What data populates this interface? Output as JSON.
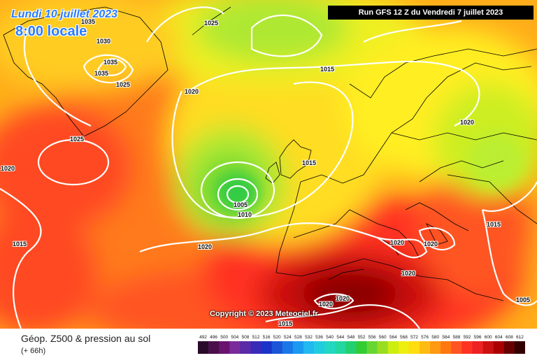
{
  "header": {
    "date": "Lundi 10 juillet 2023",
    "local_time": "8:00 locale",
    "run": "Run GFS 12 Z du Vendredi 7 juillet 2023"
  },
  "copyright": "Copyright © 2023 Meteociel.fr",
  "footer": {
    "field_title": "Géop. Z500 & pression au sol",
    "lead_time": "(+ 66h)"
  },
  "isobar_labels": [
    "1025",
    "1030",
    "1035",
    "1025",
    "1025",
    "1015",
    "1020",
    "1025",
    "1020",
    "1015",
    "1005",
    "1010",
    "1015",
    "1020",
    "1020",
    "1020",
    "1020",
    "1015",
    "1020",
    "1020",
    "1015",
    "1005",
    "1015",
    "1035"
  ],
  "colorscale": {
    "ticks": [
      "492",
      "496",
      "500",
      "504",
      "508",
      "512",
      "516",
      "520",
      "524",
      "528",
      "532",
      "536",
      "540",
      "544",
      "548",
      "552",
      "556",
      "560",
      "564",
      "568",
      "572",
      "576",
      "580",
      "584",
      "588",
      "592",
      "596",
      "600",
      "604",
      "608",
      "612"
    ],
    "colors": [
      "#2a0a2a",
      "#4b0f4b",
      "#6a1470",
      "#7a2a9a",
      "#5a2aa8",
      "#3a2ab8",
      "#1a33c8",
      "#1a55d8",
      "#1a77e8",
      "#1a99f0",
      "#22b8f0",
      "#22cce0",
      "#22d8c0",
      "#22d8a0",
      "#22d070",
      "#33cc33",
      "#66d633",
      "#99dd22",
      "#ccee11",
      "#eeee11",
      "#ffdd11",
      "#ffbb11",
      "#ff9911",
      "#ff7711",
      "#ff5522",
      "#ff3322",
      "#ee2222",
      "#cc1111",
      "#aa0000",
      "#660000",
      "#330000"
    ]
  }
}
